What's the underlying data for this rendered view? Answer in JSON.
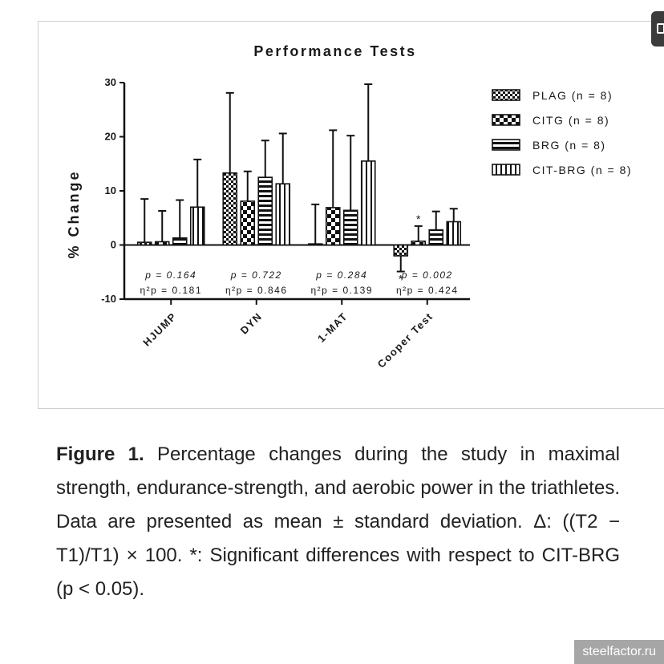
{
  "chart_data": {
    "type": "bar",
    "title": "Performance Tests",
    "ylabel": "% Change",
    "xlabel": "",
    "ylim": [
      -10,
      30
    ],
    "yticks": [
      "30",
      "20",
      "10",
      "0",
      "-10"
    ],
    "categories": [
      "HJUMP",
      "DYN",
      "1-MAT",
      "Cooper Test"
    ],
    "series": [
      {
        "name": "PLAG",
        "n": "(n = 8)",
        "pattern": "checker",
        "values": [
          0.5,
          13.3,
          0.2,
          -2.0
        ],
        "errors": [
          8.0,
          14.8,
          7.3,
          2.9
        ],
        "markers": [
          "",
          "",
          "",
          "*"
        ]
      },
      {
        "name": "CITG",
        "n": "(n = 8)",
        "pattern": "dots",
        "values": [
          0.6,
          8.1,
          6.9,
          0.7
        ],
        "errors": [
          5.7,
          5.5,
          14.3,
          2.8
        ],
        "markers": [
          "",
          "",
          "",
          "*"
        ]
      },
      {
        "name": "BRG",
        "n": "(n = 8)",
        "pattern": "hstripes",
        "values": [
          1.3,
          12.5,
          6.4,
          2.8
        ],
        "errors": [
          7.0,
          6.8,
          13.8,
          3.4
        ],
        "markers": [
          "",
          "",
          "",
          ""
        ]
      },
      {
        "name": "CIT-BRG",
        "n": "(n = 8)",
        "pattern": "vstripes",
        "values": [
          7.0,
          11.3,
          15.5,
          4.3
        ],
        "errors": [
          8.8,
          9.3,
          14.2,
          2.4
        ],
        "markers": [
          "",
          "",
          "",
          ""
        ]
      }
    ],
    "stats": [
      {
        "p": "p = 0.164",
        "eta": "η²p = 0.181"
      },
      {
        "p": "p = 0.722",
        "eta": "η²p = 0.846"
      },
      {
        "p": "p = 0.284",
        "eta": "η²p = 0.139"
      },
      {
        "p": "p = 0.002",
        "eta": "η²p = 0.424"
      }
    ],
    "legend_position": "right",
    "grid": false
  },
  "caption": {
    "label": "Figure 1.",
    "text": " Percentage changes during the study in maximal strength, endurance-strength, and aerobic power in the triathletes. Data are presented as mean ± standard deviation. Δ: ((T2 − T1)/T1) × 100. *: Significant differences with respect to CIT-BRG (p < 0.05)."
  },
  "watermark": "steelfactor.ru"
}
